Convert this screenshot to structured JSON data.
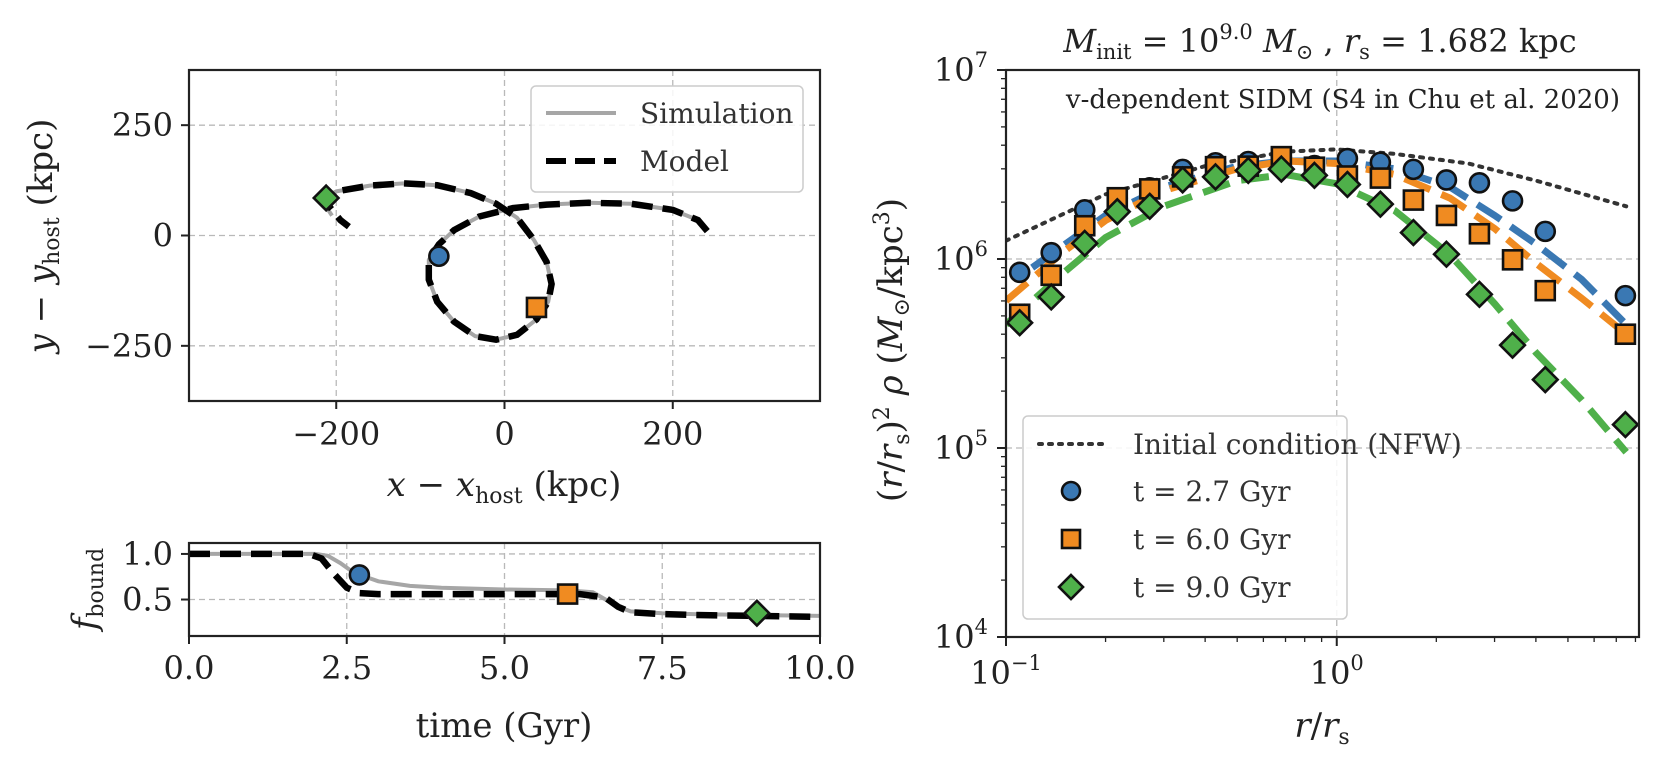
{
  "chart_data": [
    {
      "id": "orbit",
      "type": "line",
      "xlabel": "x − x_host (kpc)",
      "ylabel": "y − y_host (kpc)",
      "xlim": [
        -375,
        375
      ],
      "ylim": [
        -375,
        375
      ],
      "xticks": [
        {
          "v": -200,
          "label": "−200"
        },
        {
          "v": 0,
          "label": "0"
        },
        {
          "v": 200,
          "label": "200"
        }
      ],
      "yticks": [
        {
          "v": 250,
          "label": "250"
        },
        {
          "v": 0,
          "label": "0"
        },
        {
          "v": -250,
          "label": "−250"
        }
      ],
      "grid": true,
      "legend": {
        "position": "top-right",
        "entries": [
          {
            "label": "Simulation",
            "style": "solid",
            "color": "#a6a6a6"
          },
          {
            "label": "Model",
            "style": "dashed",
            "color": "#000000"
          }
        ]
      },
      "series": [
        {
          "name": "Simulation",
          "color": "#a6a6a6",
          "style": "solid",
          "x": [
            241,
            230,
            200,
            150,
            100,
            50,
            10,
            -30,
            -60,
            -78,
            -90,
            -90,
            -80,
            -60,
            -35,
            -10,
            15,
            38,
            52,
            56,
            50,
            35,
            15,
            -10,
            -40,
            -80,
            -120,
            -160,
            -200,
            -215,
            -212,
            -205
          ],
          "y": [
            10,
            35,
            58,
            72,
            74,
            70,
            62,
            43,
            12,
            -20,
            -55,
            -100,
            -150,
            -195,
            -228,
            -236,
            -225,
            -190,
            -150,
            -110,
            -60,
            -10,
            40,
            72,
            96,
            114,
            118,
            113,
            100,
            85,
            65,
            45
          ]
        },
        {
          "name": "Model",
          "color": "#000000",
          "style": "dashed",
          "x": [
            241,
            230,
            200,
            150,
            100,
            50,
            10,
            -30,
            -60,
            -78,
            -90,
            -90,
            -80,
            -60,
            -35,
            -10,
            15,
            38,
            52,
            56,
            50,
            35,
            15,
            -10,
            -40,
            -80,
            -120,
            -160,
            -200,
            -212,
            -208,
            -195,
            -185
          ],
          "y": [
            10,
            35,
            58,
            72,
            74,
            70,
            62,
            43,
            12,
            -20,
            -55,
            -100,
            -150,
            -195,
            -228,
            -236,
            -225,
            -190,
            -150,
            -110,
            -60,
            -10,
            40,
            72,
            96,
            114,
            118,
            113,
            100,
            85,
            65,
            35,
            20
          ]
        }
      ],
      "markers": [
        {
          "x": -78,
          "y": -47,
          "shape": "circle",
          "color": "#3a78b3"
        },
        {
          "x": 38,
          "y": -163,
          "shape": "square",
          "color": "#f08b21"
        },
        {
          "x": -212,
          "y": 85,
          "shape": "diamond",
          "color": "#4fb04a"
        }
      ]
    },
    {
      "id": "fbound",
      "type": "line",
      "xlabel": "time (Gyr)",
      "ylabel": "f_bound",
      "xlim": [
        0,
        10
      ],
      "ylim": [
        0.1,
        1.12
      ],
      "xticks": [
        {
          "v": 0,
          "label": "0.0"
        },
        {
          "v": 2.5,
          "label": "2.5"
        },
        {
          "v": 5,
          "label": "5.0"
        },
        {
          "v": 7.5,
          "label": "7.5"
        },
        {
          "v": 10,
          "label": "10.0"
        }
      ],
      "yticks": [
        {
          "v": 1.0,
          "label": "1.0"
        },
        {
          "v": 0.5,
          "label": "0.5"
        }
      ],
      "grid": true,
      "series": [
        {
          "name": "Simulation",
          "color": "#a6a6a6",
          "style": "solid",
          "x": [
            0,
            2.0,
            2.2,
            2.4,
            2.6,
            2.75,
            3.0,
            3.5,
            4,
            5,
            6,
            6.4,
            6.6,
            6.8,
            7.0,
            7.5,
            8,
            9,
            10
          ],
          "y": [
            1.0,
            1.0,
            0.98,
            0.9,
            0.8,
            0.76,
            0.7,
            0.65,
            0.63,
            0.61,
            0.6,
            0.58,
            0.5,
            0.42,
            0.37,
            0.35,
            0.34,
            0.33,
            0.32
          ]
        },
        {
          "name": "Model",
          "color": "#000000",
          "style": "dashed",
          "x": [
            0,
            1.9,
            2.1,
            2.3,
            2.5,
            2.7,
            3.0,
            4,
            5,
            6.2,
            6.6,
            6.8,
            7.0,
            7.5,
            8,
            9,
            10
          ],
          "y": [
            1.0,
            1.0,
            0.95,
            0.78,
            0.63,
            0.57,
            0.56,
            0.56,
            0.56,
            0.56,
            0.52,
            0.42,
            0.36,
            0.34,
            0.33,
            0.32,
            0.31
          ]
        }
      ],
      "markers": [
        {
          "x": 2.7,
          "y": 0.77,
          "shape": "circle",
          "color": "#3a78b3"
        },
        {
          "x": 6.0,
          "y": 0.56,
          "shape": "square",
          "color": "#f08b21"
        },
        {
          "x": 9.0,
          "y": 0.35,
          "shape": "diamond",
          "color": "#4fb04a"
        }
      ]
    },
    {
      "id": "density",
      "type": "scatter",
      "title": "M_init = 10^9.0 M⊙ , r_s = 1.682 kpc",
      "annotation": "v-dependent SIDM (S4 in Chu et al. 2020)",
      "xlabel": "r/r_s",
      "ylabel": "(r/r_s)² ρ (M⊙/kpc³)",
      "xscale": "log",
      "yscale": "log",
      "xlim": [
        0.1,
        8.2
      ],
      "ylim": [
        10000,
        10000000
      ],
      "xticks": [
        {
          "v": 0.1,
          "base": "10",
          "exp": "−1"
        },
        {
          "v": 1,
          "base": "10",
          "exp": "0"
        }
      ],
      "yticks": [
        {
          "v": 10000,
          "base": "10",
          "exp": "4"
        },
        {
          "v": 100000,
          "base": "10",
          "exp": "5"
        },
        {
          "v": 1000000,
          "base": "10",
          "exp": "6"
        },
        {
          "v": 10000000,
          "base": "10",
          "exp": "7"
        }
      ],
      "grid": true,
      "legend": {
        "position": "bottom-left",
        "entries": [
          {
            "label": "Initial condition (NFW)",
            "style": "dotted",
            "color": "#333333"
          },
          {
            "label": "t = 2.7 Gyr",
            "style": "circle",
            "color": "#3a78b3"
          },
          {
            "label": "t = 6.0 Gyr",
            "style": "square",
            "color": "#f08b21"
          },
          {
            "label": "t = 9.0 Gyr",
            "style": "diamond",
            "color": "#4fb04a"
          }
        ]
      },
      "curves": [
        {
          "name": "Initial condition (NFW)",
          "color": "#333333",
          "style": "dotted",
          "x": [
            0.1,
            0.2,
            0.4,
            0.7,
            1.0,
            1.5,
            2.5,
            4.0,
            7.5
          ],
          "y": [
            1250000,
            2200000,
            3100000,
            3700000,
            3800000,
            3600000,
            3200000,
            2600000,
            1900000
          ]
        },
        {
          "name": "t = 2.7 Gyr model",
          "color": "#3a78b3",
          "style": "dashed",
          "x": [
            0.12,
            0.2,
            0.3,
            0.5,
            0.7,
            1.0,
            1.5,
            2.2,
            3.0,
            4.0,
            5.5,
            7.5
          ],
          "y": [
            900000,
            1700000,
            2400000,
            3100000,
            3300000,
            3300000,
            3000000,
            2400000,
            1700000,
            1200000,
            780000,
            450000
          ]
        },
        {
          "name": "t = 6.0 Gyr model",
          "color": "#f08b21",
          "style": "dashed",
          "x": [
            0.1,
            0.15,
            0.2,
            0.3,
            0.5,
            0.7,
            1.0,
            1.5,
            2.2,
            3.0,
            4.0,
            5.5,
            7.5
          ],
          "y": [
            600000,
            1100000,
            1600000,
            2300000,
            3000000,
            3300000,
            3200000,
            2800000,
            2100000,
            1450000,
            950000,
            620000,
            400000
          ]
        },
        {
          "name": "t = 9.0 Gyr model",
          "color": "#4fb04a",
          "style": "dashed",
          "x": [
            0.1,
            0.15,
            0.2,
            0.3,
            0.5,
            0.7,
            1.0,
            1.5,
            2.2,
            3.0,
            4.0,
            5.5,
            7.5
          ],
          "y": [
            450000,
            850000,
            1300000,
            1900000,
            2600000,
            2800000,
            2500000,
            1800000,
            1050000,
            580000,
            320000,
            180000,
            95000
          ]
        }
      ],
      "series": [
        {
          "name": "t = 2.7 Gyr",
          "marker": "circle",
          "color": "#3a78b3",
          "x": [
            0.11,
            0.137,
            0.173,
            0.217,
            0.272,
            0.342,
            0.43,
            0.54,
            0.68,
            0.856,
            1.077,
            1.355,
            1.705,
            2.146,
            2.7,
            3.4,
            4.27,
            7.46
          ],
          "y": [
            850000,
            1080000,
            1820000,
            2100000,
            2380000,
            2980000,
            3230000,
            3280000,
            3450000,
            3120000,
            3400000,
            3250000,
            2980000,
            2620000,
            2530000,
            2030000,
            1400000,
            640000
          ]
        },
        {
          "name": "t = 6.0 Gyr",
          "marker": "square",
          "color": "#f08b21",
          "x": [
            0.11,
            0.137,
            0.173,
            0.217,
            0.272,
            0.342,
            0.43,
            0.54,
            0.68,
            0.856,
            1.077,
            1.355,
            1.705,
            2.146,
            2.7,
            3.4,
            4.27,
            7.46
          ],
          "y": [
            510000,
            820000,
            1500000,
            2110000,
            2350000,
            2720000,
            3080000,
            3100000,
            3480000,
            3060000,
            2750000,
            2680000,
            2050000,
            1700000,
            1360000,
            990000,
            680000,
            400000
          ]
        },
        {
          "name": "t = 9.0 Gyr",
          "marker": "diamond",
          "color": "#4fb04a",
          "x": [
            0.11,
            0.137,
            0.173,
            0.217,
            0.272,
            0.342,
            0.43,
            0.54,
            0.68,
            0.856,
            1.077,
            1.355,
            1.705,
            2.146,
            2.7,
            3.4,
            4.27,
            7.46
          ],
          "y": [
            460000,
            630000,
            1210000,
            1780000,
            1900000,
            2620000,
            2720000,
            2940000,
            2990000,
            2770000,
            2480000,
            1950000,
            1380000,
            1060000,
            650000,
            350000,
            230000,
            133000
          ]
        }
      ]
    }
  ]
}
